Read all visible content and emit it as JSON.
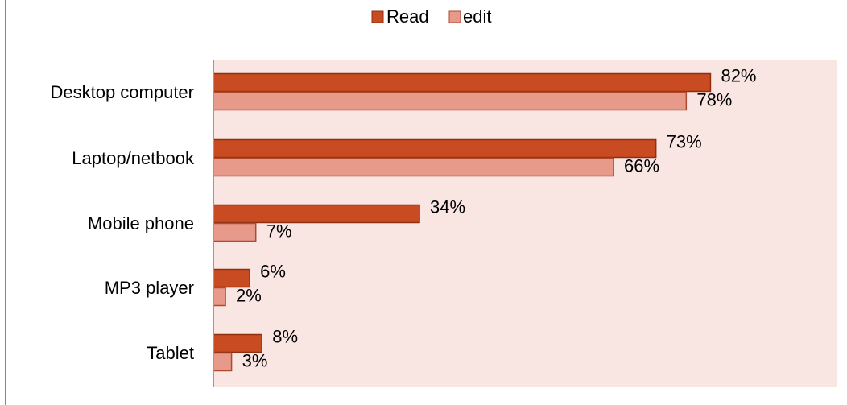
{
  "colors": {
    "read_fill": "#c84b21",
    "read_stroke": "#8f2f10",
    "edit_fill": "#e89a8a",
    "edit_stroke": "#b04a2e",
    "plot_bg": "#f9e6e3",
    "axis": "#999999",
    "frame": "#888888"
  },
  "chart_data": {
    "type": "bar",
    "orientation": "horizontal",
    "title": "",
    "xlabel": "",
    "ylabel": "",
    "categories": [
      "Desktop computer",
      "Laptop/netbook",
      "Mobile phone",
      "MP3 player",
      "Tablet"
    ],
    "series": [
      {
        "name": "Read",
        "values": [
          82,
          73,
          34,
          6,
          8
        ],
        "labels": [
          "82%",
          "73%",
          "34%",
          "6%",
          "8%"
        ]
      },
      {
        "name": "edit",
        "values": [
          78,
          66,
          7,
          2,
          3
        ],
        "labels": [
          "78%",
          "66%",
          "7%",
          "2%",
          "3%"
        ]
      }
    ],
    "xlim": [
      0,
      100
    ],
    "grid": false,
    "legend": "top-center"
  }
}
